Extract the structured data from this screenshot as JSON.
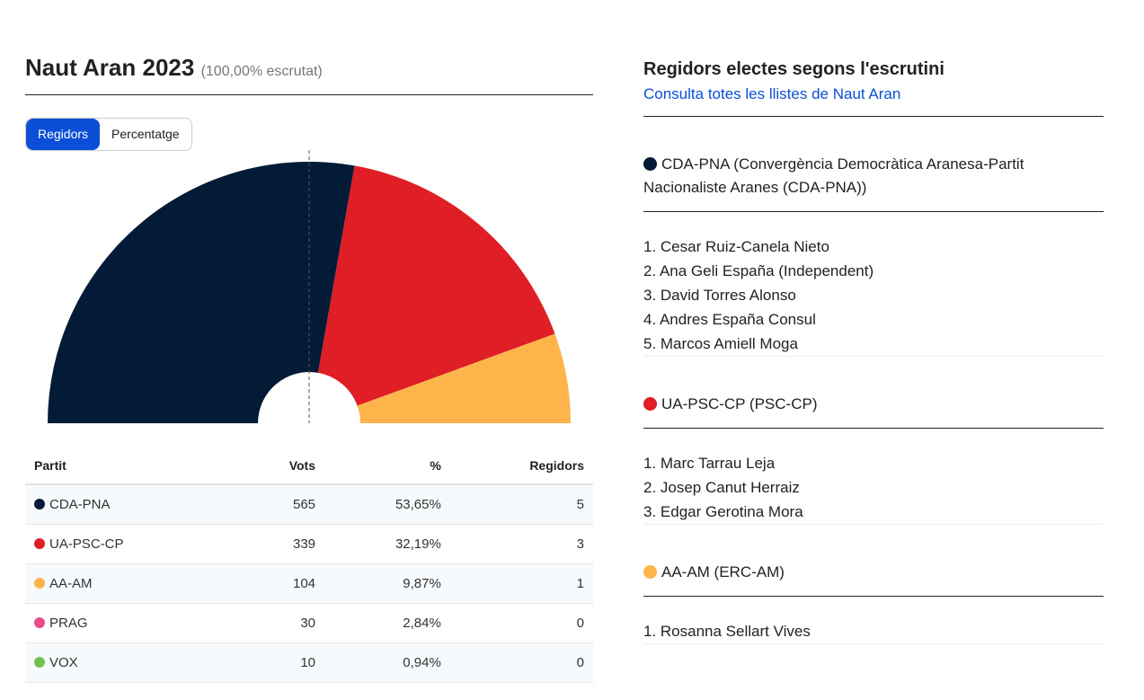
{
  "header": {
    "title": "Naut Aran 2023",
    "subtitle": "(100,00% escrutat)"
  },
  "toggle": {
    "seats": "Regidors",
    "percent": "Percentatge"
  },
  "table": {
    "headers": [
      "Partit",
      "Vots",
      "%",
      "Regidors"
    ],
    "rows": [
      {
        "party": "CDA-PNA",
        "votes": "565",
        "pct": "53,65%",
        "seats": "5",
        "color": "#031b37"
      },
      {
        "party": "UA-PSC-CP",
        "votes": "339",
        "pct": "32,19%",
        "seats": "3",
        "color": "#df1e25"
      },
      {
        "party": "AA-AM",
        "votes": "104",
        "pct": "9,87%",
        "seats": "1",
        "color": "#fdb44b"
      },
      {
        "party": "PRAG",
        "votes": "30",
        "pct": "2,84%",
        "seats": "0",
        "color": "#ea4a8b"
      },
      {
        "party": "VOX",
        "votes": "10",
        "pct": "0,94%",
        "seats": "0",
        "color": "#72c14b"
      }
    ]
  },
  "chart_data": {
    "type": "pie",
    "subtype": "semicircle-parliament",
    "total_seats": 9,
    "categories": [
      "CDA-PNA",
      "UA-PSC-CP",
      "AA-AM"
    ],
    "values": [
      5,
      3,
      1
    ],
    "colors": [
      "#031b37",
      "#df1e25",
      "#fdb44b"
    ],
    "majority_line": true
  },
  "right": {
    "title": "Regidors electes segons l'escrutini",
    "link": "Consulta totes les llistes de Naut Aran",
    "groups": [
      {
        "party": "CDA-PNA (Convergència Democràtica Aranesa-Partit Nacionaliste Aranes (CDA-PNA))",
        "color": "#031b37",
        "names": [
          "1. Cesar Ruiz-Canela Nieto",
          "2. Ana Geli España (Independent)",
          "3. David Torres Alonso",
          "4. Andres España Consul",
          "5. Marcos Amiell Moga"
        ]
      },
      {
        "party": "UA-PSC-CP (PSC-CP)",
        "color": "#df1e25",
        "names": [
          "1. Marc Tarrau Leja",
          "2. Josep Canut Herraiz",
          "3. Edgar Gerotina Mora"
        ]
      },
      {
        "party": "AA-AM (ERC-AM)",
        "color": "#fdb44b",
        "names": [
          "1. Rosanna Sellart Vives"
        ]
      }
    ]
  }
}
